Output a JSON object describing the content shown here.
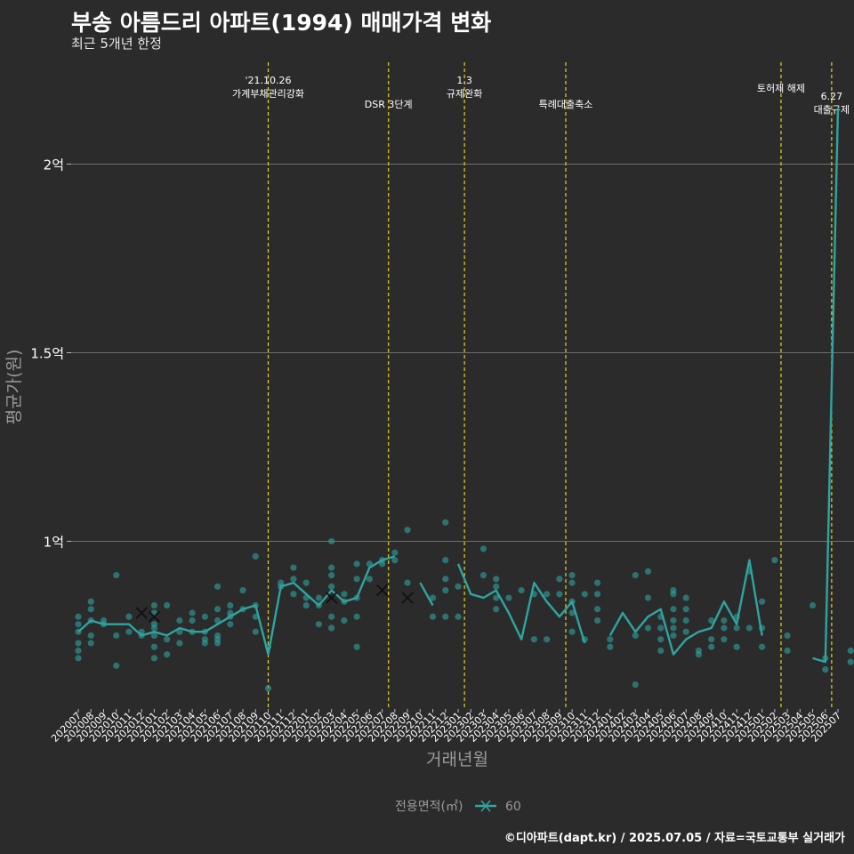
{
  "chart_data": {
    "type": "line",
    "title": "부송 아름드리 아파트(1994) 매매가격 변화",
    "subtitle": "최근 5개년 한정",
    "xlabel": "거래년월",
    "ylabel": "평균가(원)",
    "ylim": [
      0.56,
      2.27
    ],
    "y_ticks": [
      {
        "value": 1.0,
        "label": "1억"
      },
      {
        "value": 1.5,
        "label": "1.5억"
      },
      {
        "value": 2.0,
        "label": "2억"
      }
    ],
    "categories": [
      "202007",
      "202008",
      "202009",
      "202010",
      "202011",
      "202012",
      "202101",
      "202102",
      "202103",
      "202104",
      "202105",
      "202106",
      "202107",
      "202108",
      "202109",
      "202110",
      "202111",
      "202112",
      "202201",
      "202202",
      "202203",
      "202204",
      "202205",
      "202206",
      "202207",
      "202208",
      "202209",
      "202210",
      "202211",
      "202212",
      "202301",
      "202302",
      "202303",
      "202304",
      "202305",
      "202306",
      "202307",
      "202308",
      "202309",
      "202310",
      "202311",
      "202312",
      "202401",
      "202402",
      "202403",
      "202404",
      "202405",
      "202406",
      "202407",
      "202408",
      "202409",
      "202410",
      "202411",
      "202412",
      "202501",
      "202502",
      "202503",
      "202504",
      "202505",
      "202506",
      "202507"
    ],
    "series": [
      {
        "name": "60",
        "color": "#2fa4a0",
        "values": [
          0.76,
          0.79,
          0.78,
          0.78,
          0.78,
          0.75,
          0.76,
          0.75,
          0.77,
          0.76,
          0.76,
          0.78,
          0.8,
          0.82,
          0.83,
          0.7,
          0.88,
          0.89,
          0.86,
          0.83,
          0.87,
          0.84,
          0.85,
          0.93,
          0.95,
          0.96,
          null,
          0.89,
          0.83,
          null,
          0.94,
          0.86,
          0.85,
          0.87,
          0.81,
          0.74,
          0.89,
          0.84,
          0.8,
          0.84,
          0.73,
          null,
          0.75,
          0.81,
          0.76,
          0.8,
          0.82,
          0.7,
          0.74,
          0.76,
          0.77,
          0.84,
          0.78,
          0.95,
          0.75,
          null,
          null,
          null,
          0.69,
          0.68,
          2.15
        ]
      }
    ],
    "scatter_points": [
      [
        0,
        0.8
      ],
      [
        0,
        0.78
      ],
      [
        0,
        0.76
      ],
      [
        0,
        0.73
      ],
      [
        0,
        0.71
      ],
      [
        0,
        0.69
      ],
      [
        1,
        0.84
      ],
      [
        1,
        0.82
      ],
      [
        1,
        0.79
      ],
      [
        1,
        0.75
      ],
      [
        1,
        0.73
      ],
      [
        2,
        0.78
      ],
      [
        2,
        0.79
      ],
      [
        3,
        0.91
      ],
      [
        3,
        0.75
      ],
      [
        3,
        0.67
      ],
      [
        4,
        0.8
      ],
      [
        4,
        0.76
      ],
      [
        5,
        0.76
      ],
      [
        5,
        0.75
      ],
      [
        6,
        0.83
      ],
      [
        6,
        0.81
      ],
      [
        6,
        0.78
      ],
      [
        6,
        0.77
      ],
      [
        6,
        0.75
      ],
      [
        6,
        0.72
      ],
      [
        6,
        0.69
      ],
      [
        7,
        0.83
      ],
      [
        7,
        0.74
      ],
      [
        7,
        0.7
      ],
      [
        8,
        0.79
      ],
      [
        8,
        0.76
      ],
      [
        8,
        0.73
      ],
      [
        9,
        0.81
      ],
      [
        9,
        0.79
      ],
      [
        9,
        0.76
      ],
      [
        10,
        0.8
      ],
      [
        10,
        0.76
      ],
      [
        10,
        0.74
      ],
      [
        10,
        0.73
      ],
      [
        11,
        0.88
      ],
      [
        11,
        0.82
      ],
      [
        11,
        0.79
      ],
      [
        11,
        0.75
      ],
      [
        11,
        0.74
      ],
      [
        11,
        0.73
      ],
      [
        12,
        0.83
      ],
      [
        12,
        0.81
      ],
      [
        12,
        0.8
      ],
      [
        12,
        0.78
      ],
      [
        13,
        0.87
      ],
      [
        13,
        0.82
      ],
      [
        14,
        0.96
      ],
      [
        14,
        0.83
      ],
      [
        14,
        0.8
      ],
      [
        14,
        0.76
      ],
      [
        15,
        0.61
      ],
      [
        15,
        0.72
      ],
      [
        16,
        0.89
      ],
      [
        16,
        0.88
      ],
      [
        17,
        0.93
      ],
      [
        17,
        0.9
      ],
      [
        17,
        0.86
      ],
      [
        18,
        0.89
      ],
      [
        18,
        0.85
      ],
      [
        18,
        0.83
      ],
      [
        19,
        0.85
      ],
      [
        19,
        0.83
      ],
      [
        19,
        0.78
      ],
      [
        20,
        1.0
      ],
      [
        20,
        0.93
      ],
      [
        20,
        0.91
      ],
      [
        20,
        0.88
      ],
      [
        20,
        0.8
      ],
      [
        20,
        0.77
      ],
      [
        21,
        0.86
      ],
      [
        21,
        0.84
      ],
      [
        21,
        0.79
      ],
      [
        22,
        0.94
      ],
      [
        22,
        0.9
      ],
      [
        22,
        0.85
      ],
      [
        22,
        0.8
      ],
      [
        22,
        0.72
      ],
      [
        23,
        0.94
      ],
      [
        23,
        0.9
      ],
      [
        24,
        0.95
      ],
      [
        24,
        0.94
      ],
      [
        25,
        0.97
      ],
      [
        25,
        0.95
      ],
      [
        26,
        1.03
      ],
      [
        26,
        0.89
      ],
      [
        28,
        0.85
      ],
      [
        28,
        0.8
      ],
      [
        29,
        1.05
      ],
      [
        29,
        0.95
      ],
      [
        29,
        0.9
      ],
      [
        29,
        0.87
      ],
      [
        29,
        0.8
      ],
      [
        30,
        0.88
      ],
      [
        30,
        0.8
      ],
      [
        32,
        0.98
      ],
      [
        32,
        0.91
      ],
      [
        33,
        0.9
      ],
      [
        33,
        0.88
      ],
      [
        33,
        0.85
      ],
      [
        33,
        0.82
      ],
      [
        34,
        0.85
      ],
      [
        35,
        0.87
      ],
      [
        36,
        0.86
      ],
      [
        36,
        0.74
      ],
      [
        37,
        0.86
      ],
      [
        37,
        0.74
      ],
      [
        38,
        0.9
      ],
      [
        38,
        0.86
      ],
      [
        39,
        0.91
      ],
      [
        39,
        0.89
      ],
      [
        39,
        0.84
      ],
      [
        39,
        0.81
      ],
      [
        39,
        0.76
      ],
      [
        40,
        0.86
      ],
      [
        40,
        0.74
      ],
      [
        41,
        0.89
      ],
      [
        41,
        0.86
      ],
      [
        41,
        0.82
      ],
      [
        41,
        0.79
      ],
      [
        42,
        0.74
      ],
      [
        42,
        0.72
      ],
      [
        44,
        0.91
      ],
      [
        44,
        0.75
      ],
      [
        44,
        0.62
      ],
      [
        45,
        0.92
      ],
      [
        45,
        0.85
      ],
      [
        45,
        0.77
      ],
      [
        46,
        0.8
      ],
      [
        46,
        0.77
      ],
      [
        46,
        0.74
      ],
      [
        46,
        0.71
      ],
      [
        47,
        0.87
      ],
      [
        47,
        0.86
      ],
      [
        47,
        0.82
      ],
      [
        47,
        0.79
      ],
      [
        47,
        0.77
      ],
      [
        47,
        0.75
      ],
      [
        48,
        0.85
      ],
      [
        48,
        0.82
      ],
      [
        48,
        0.79
      ],
      [
        48,
        0.76
      ],
      [
        49,
        0.71
      ],
      [
        49,
        0.7
      ],
      [
        50,
        0.79
      ],
      [
        50,
        0.74
      ],
      [
        50,
        0.72
      ],
      [
        51,
        0.79
      ],
      [
        51,
        0.77
      ],
      [
        51,
        0.74
      ],
      [
        52,
        0.8
      ],
      [
        52,
        0.77
      ],
      [
        52,
        0.72
      ],
      [
        53,
        0.92
      ],
      [
        53,
        0.77
      ],
      [
        54,
        0.84
      ],
      [
        54,
        0.77
      ],
      [
        54,
        0.72
      ],
      [
        55,
        0.95
      ],
      [
        56,
        0.75
      ],
      [
        56,
        0.71
      ],
      [
        58,
        0.83
      ],
      [
        59,
        0.69
      ],
      [
        59,
        0.66
      ],
      [
        61,
        0.71
      ],
      [
        61,
        0.68
      ],
      [
        62,
        0.71
      ],
      [
        62,
        0.67
      ]
    ],
    "cancelled_points": [
      [
        5,
        0.81
      ],
      [
        6,
        0.8
      ],
      [
        20,
        0.85
      ],
      [
        24,
        0.87
      ],
      [
        26,
        0.85
      ]
    ],
    "events": [
      {
        "index": 15,
        "label": "'21.10.26\n가계부채관리강화",
        "pos": "high"
      },
      {
        "index": 24.5,
        "label": "DSR 3단계",
        "pos": "low"
      },
      {
        "index": 30.5,
        "label": "1.3\n규제완화",
        "pos": "high"
      },
      {
        "index": 38.5,
        "label": "특례대출축소",
        "pos": "low"
      },
      {
        "index": 55.5,
        "label": "토허제 해제",
        "pos": "mid"
      },
      {
        "index": 59.5,
        "label": "6.27\n대출규제",
        "pos": "low"
      }
    ],
    "legend": {
      "title": "전용면적(㎡)",
      "items": [
        "60"
      ],
      "position": "bottom"
    }
  },
  "footer": "©디아파트(dapt.kr) / 2025.07.05 / 자료=국토교통부 실거래가",
  "colors": {
    "background": "#2b2b2b",
    "series": "#2fa4a0",
    "event_line": "#e6d21e",
    "grid": "#6e6e6e",
    "cancel_mark": "#111111"
  }
}
